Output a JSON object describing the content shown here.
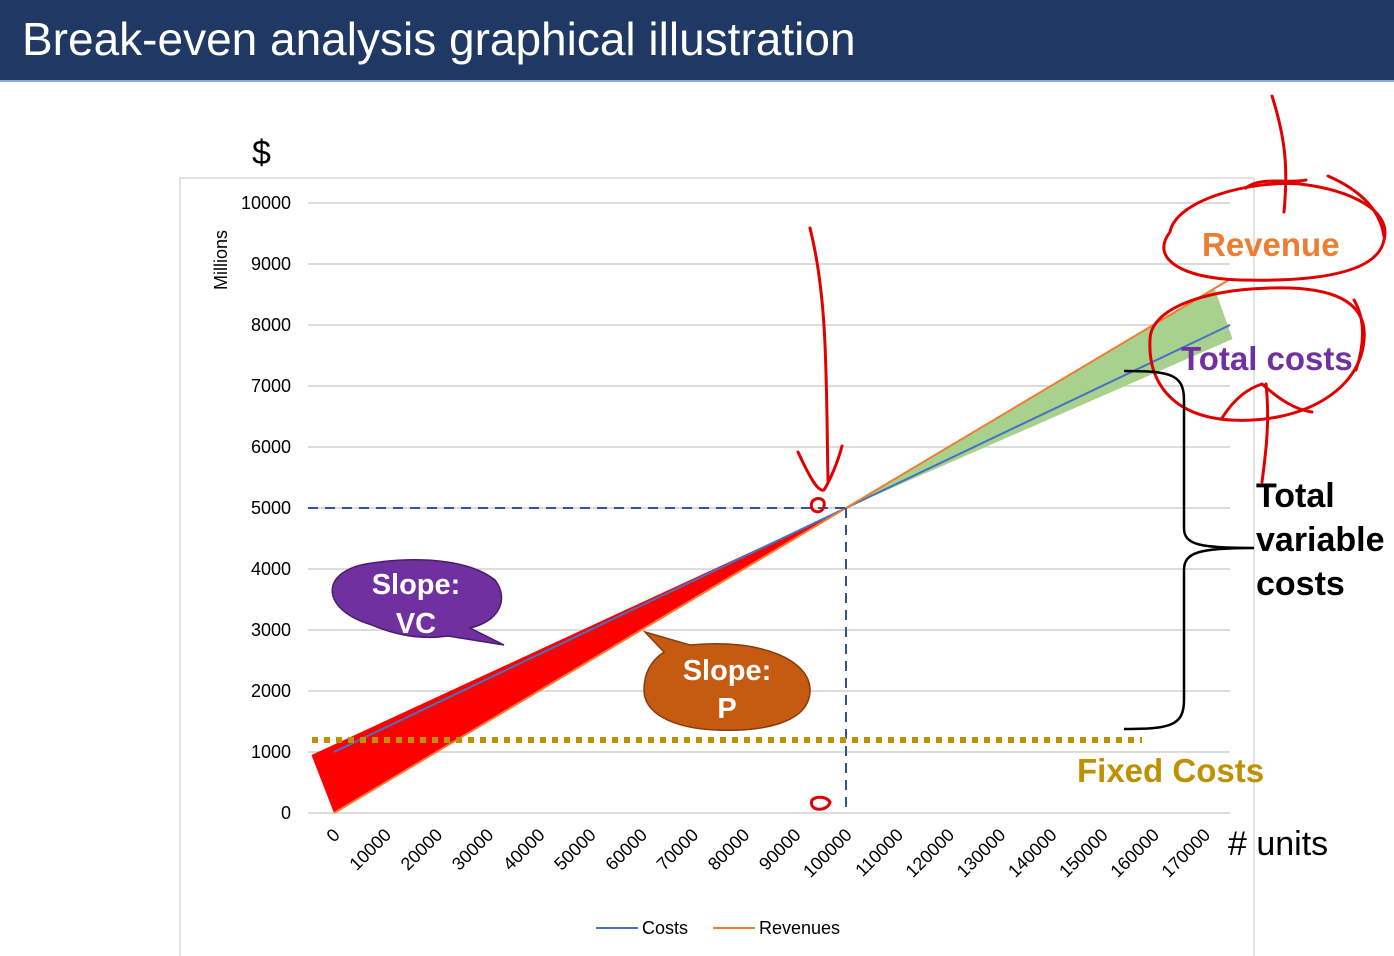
{
  "slide": {
    "title": "Break-even analysis graphical illustration"
  },
  "colors": {
    "title_bg": "#1f3864",
    "costs_line": "#4472c4",
    "revenues_line": "#ed7d31",
    "loss_area": "#ff0000",
    "profit_area": "#a9d18e",
    "fixed_costs": "#bf9000",
    "slope_vc_bubble": "#7030a0",
    "slope_p_bubble": "#c55a11",
    "annotation_ink": "#e00000"
  },
  "chart_data": {
    "type": "line",
    "title": "",
    "ylabel": "Millions",
    "xlabel": "",
    "ylim": [
      0,
      10000
    ],
    "yticks": [
      "0",
      "1000",
      "2000",
      "3000",
      "4000",
      "5000",
      "6000",
      "7000",
      "8000",
      "9000",
      "10000"
    ],
    "categories": [
      "0",
      "10000",
      "20000",
      "30000",
      "40000",
      "50000",
      "60000",
      "70000",
      "80000",
      "90000",
      "100000",
      "110000",
      "120000",
      "130000",
      "140000",
      "150000",
      "160000",
      "170000"
    ],
    "series": [
      {
        "name": "Costs",
        "x": [
          0,
          175000
        ],
        "values": [
          1000,
          8000
        ]
      },
      {
        "name": "Revenues",
        "x": [
          0,
          175000
        ],
        "values": [
          0,
          8750
        ]
      }
    ],
    "fixed_costs": 1000,
    "break_even": {
      "units": 100000,
      "value": 5000
    },
    "grid": true,
    "legend": "bottom"
  },
  "annotations": {
    "y_unit": "$",
    "x_unit": "# units",
    "revenue_label": "Revenue",
    "total_costs_label": "Total costs",
    "total_variable_costs_label": [
      "Total",
      "variable",
      "costs"
    ],
    "fixed_costs_label": "Fixed Costs",
    "slope_vc": [
      "Slope:",
      "VC"
    ],
    "slope_p": [
      "Slope:",
      "P"
    ]
  }
}
